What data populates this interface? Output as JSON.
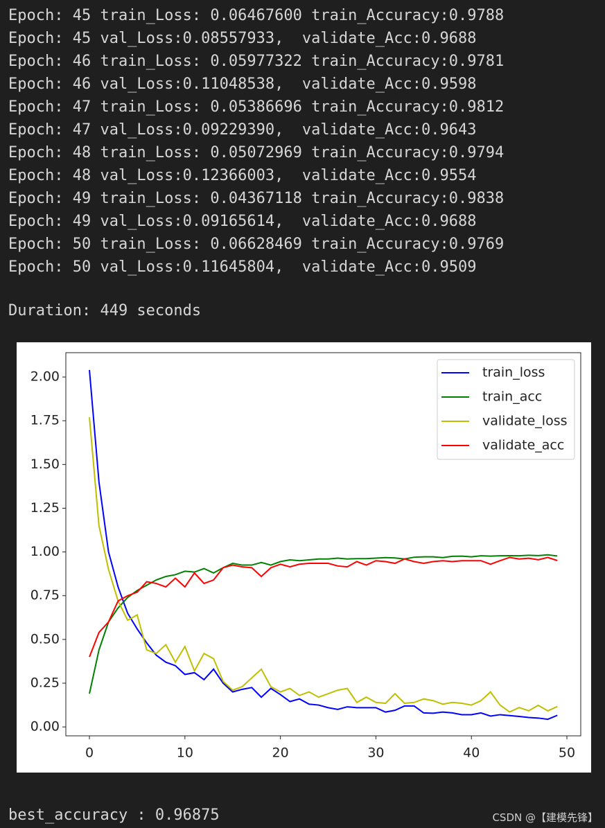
{
  "log_lines": [
    "Epoch: 45 train_Loss: 0.06467600 train_Accuracy:0.9788",
    "Epoch: 45 val_Loss:0.08557933,  validate_Acc:0.9688",
    "Epoch: 46 train_Loss: 0.05977322 train_Accuracy:0.9781",
    "Epoch: 46 val_Loss:0.11048538,  validate_Acc:0.9598",
    "Epoch: 47 train_Loss: 0.05386696 train_Accuracy:0.9812",
    "Epoch: 47 val_Loss:0.09229390,  validate_Acc:0.9643",
    "Epoch: 48 train_Loss: 0.05072969 train_Accuracy:0.9794",
    "Epoch: 48 val_Loss:0.12366003,  validate_Acc:0.9554",
    "Epoch: 49 train_Loss: 0.04367118 train_Accuracy:0.9838",
    "Epoch: 49 val_Loss:0.09165614,  validate_Acc:0.9688",
    "Epoch: 50 train_Loss: 0.06628469 train_Accuracy:0.9769",
    "Epoch: 50 val_Loss:0.11645804,  validate_Acc:0.9509"
  ],
  "duration": "Duration: 449 seconds",
  "best_accuracy": "best_accuracy : 0.96875",
  "watermark": "CSDN @【建模先锋】",
  "chart_data": {
    "type": "line",
    "x": [
      0,
      1,
      2,
      3,
      4,
      5,
      6,
      7,
      8,
      9,
      10,
      11,
      12,
      13,
      14,
      15,
      16,
      17,
      18,
      19,
      20,
      21,
      22,
      23,
      24,
      25,
      26,
      27,
      28,
      29,
      30,
      31,
      32,
      33,
      34,
      35,
      36,
      37,
      38,
      39,
      40,
      41,
      42,
      43,
      44,
      45,
      46,
      47,
      48,
      49
    ],
    "series": [
      {
        "name": "train_loss",
        "color": "#0000ff",
        "values": [
          2.04,
          1.4,
          1.0,
          0.8,
          0.65,
          0.56,
          0.48,
          0.41,
          0.37,
          0.35,
          0.3,
          0.31,
          0.27,
          0.33,
          0.25,
          0.2,
          0.215,
          0.225,
          0.17,
          0.22,
          0.185,
          0.145,
          0.16,
          0.13,
          0.125,
          0.11,
          0.1,
          0.115,
          0.11,
          0.11,
          0.11,
          0.085,
          0.095,
          0.12,
          0.12,
          0.08,
          0.078,
          0.085,
          0.08,
          0.07,
          0.07,
          0.08,
          0.062,
          0.07,
          0.0647,
          0.0598,
          0.0539,
          0.0507,
          0.0437,
          0.0663
        ]
      },
      {
        "name": "train_acc",
        "color": "#008000",
        "values": [
          0.19,
          0.44,
          0.6,
          0.68,
          0.74,
          0.78,
          0.81,
          0.84,
          0.86,
          0.87,
          0.89,
          0.885,
          0.905,
          0.88,
          0.91,
          0.935,
          0.925,
          0.925,
          0.94,
          0.925,
          0.945,
          0.955,
          0.95,
          0.955,
          0.96,
          0.96,
          0.965,
          0.96,
          0.962,
          0.962,
          0.965,
          0.968,
          0.966,
          0.96,
          0.97,
          0.972,
          0.972,
          0.968,
          0.975,
          0.976,
          0.972,
          0.978,
          0.976,
          0.978,
          0.9788,
          0.9781,
          0.9812,
          0.9794,
          0.9838,
          0.9769
        ]
      },
      {
        "name": "validate_loss",
        "color": "#bfbf00",
        "values": [
          1.77,
          1.15,
          0.9,
          0.72,
          0.61,
          0.64,
          0.44,
          0.42,
          0.47,
          0.37,
          0.46,
          0.32,
          0.42,
          0.39,
          0.26,
          0.21,
          0.23,
          0.28,
          0.33,
          0.23,
          0.2,
          0.22,
          0.18,
          0.2,
          0.17,
          0.19,
          0.21,
          0.22,
          0.14,
          0.17,
          0.14,
          0.135,
          0.19,
          0.135,
          0.14,
          0.16,
          0.15,
          0.13,
          0.14,
          0.135,
          0.125,
          0.15,
          0.2,
          0.125,
          0.0856,
          0.1105,
          0.0923,
          0.1237,
          0.0917,
          0.1165
        ]
      },
      {
        "name": "validate_acc",
        "color": "#ff0000",
        "values": [
          0.4,
          0.54,
          0.6,
          0.72,
          0.75,
          0.77,
          0.83,
          0.82,
          0.8,
          0.85,
          0.8,
          0.88,
          0.82,
          0.84,
          0.91,
          0.925,
          0.915,
          0.91,
          0.86,
          0.91,
          0.93,
          0.915,
          0.93,
          0.935,
          0.935,
          0.935,
          0.92,
          0.915,
          0.945,
          0.925,
          0.95,
          0.945,
          0.935,
          0.96,
          0.945,
          0.935,
          0.945,
          0.95,
          0.945,
          0.95,
          0.95,
          0.95,
          0.93,
          0.95,
          0.9688,
          0.9598,
          0.9643,
          0.9554,
          0.9688,
          0.9509
        ]
      }
    ],
    "xlim": [
      -2.47,
      51.45
    ],
    "xticks": [
      0,
      10,
      20,
      30,
      40,
      50
    ],
    "ylim": [
      -0.051,
      2.139
    ],
    "yticks": [
      {
        "value": 0,
        "label": "0.00"
      },
      {
        "value": 0.25,
        "label": "0.25"
      },
      {
        "value": 0.5,
        "label": "0.50"
      },
      {
        "value": 0.75,
        "label": "0.75"
      },
      {
        "value": 1,
        "label": "1.00"
      },
      {
        "value": 1.25,
        "label": "1.25"
      },
      {
        "value": 1.5,
        "label": "1.50"
      },
      {
        "value": 1.75,
        "label": "1.75"
      },
      {
        "value": 2,
        "label": "2.00"
      }
    ],
    "legend": "upper right",
    "grid": false
  }
}
